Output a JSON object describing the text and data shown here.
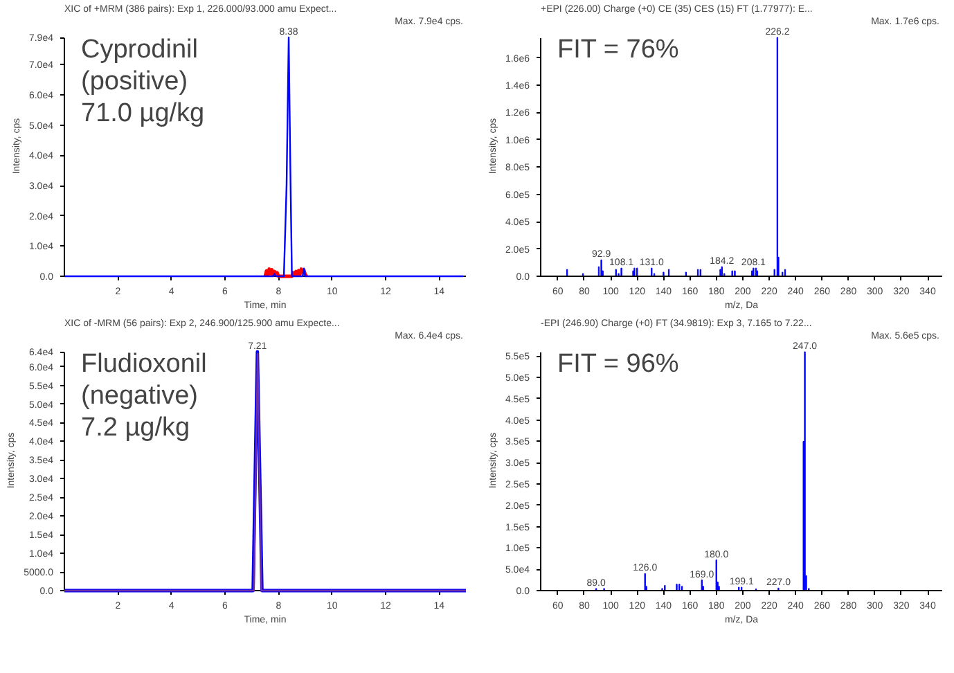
{
  "chart_data": [
    {
      "type": "line",
      "title": "XIC of +MRM (386 pairs): Exp 1, 226.000/93.000 amu Expect...",
      "subtitle": "Max. 7.9e4 cps.",
      "xlabel": "Time, min",
      "ylabel": "Intensity, cps",
      "series": [
        {
          "color": "#ff0000",
          "x": [
            7.5,
            7.55,
            7.6,
            7.65,
            7.7,
            7.75,
            7.8,
            7.85,
            7.9,
            7.95,
            8.0,
            8.5,
            8.55,
            8.6,
            8.65,
            8.7,
            8.75,
            8.8,
            8.85,
            8.9,
            8.95,
            9.0,
            9.05
          ],
          "values": [
            0,
            1800,
            500,
            2400,
            800,
            2200,
            300,
            1600,
            400,
            1200,
            0,
            0,
            1200,
            400,
            1600,
            700,
            1900,
            600,
            2400,
            1400,
            2000,
            600,
            0
          ]
        },
        {
          "color": "#0000ff",
          "x": [
            0,
            7.8,
            7.85,
            7.9,
            8.2,
            8.3,
            8.38,
            8.45,
            8.5,
            8.6,
            8.9,
            8.95,
            9.0,
            14.9
          ],
          "values": [
            0,
            0,
            800,
            0,
            0,
            30000,
            79000,
            30000,
            0,
            0,
            0,
            2600,
            0,
            0
          ]
        }
      ],
      "xlim": [
        0,
        15
      ],
      "ylim": [
        0,
        79000
      ],
      "xticks": [
        2,
        4,
        6,
        8,
        10,
        12,
        14
      ],
      "yticks": [
        {
          "value": 0,
          "label": "0.0"
        },
        {
          "value": 10000,
          "label": "1.0e4"
        },
        {
          "value": 20000,
          "label": "2.0e4"
        },
        {
          "value": 30000,
          "label": "3.0e4"
        },
        {
          "value": 40000,
          "label": "4.0e4"
        },
        {
          "value": 50000,
          "label": "5.0e4"
        },
        {
          "value": 60000,
          "label": "6.0e4"
        },
        {
          "value": 70000,
          "label": "7.0e4"
        },
        {
          "value": 79000,
          "label": "7.9e4"
        }
      ],
      "annotations": [
        "Cyprodinil\n(positive)\n71.0 µg/kg",
        {
          "text": "8.38",
          "x": 8.38,
          "y": 79000
        }
      ]
    },
    {
      "type": "bar",
      "title": "+EPI (226.00) Charge (+0) CE (35) CES (15) FT (1.77977): E...",
      "subtitle": "Max. 1.7e6 cps.",
      "xlabel": "m/z, Da",
      "ylabel": "Intensity, cps",
      "series": [
        {
          "color": "#0000ff",
          "x": [
            67,
            79,
            91,
            92.9,
            94,
            104,
            106,
            108.1,
            117,
            118,
            120,
            131,
            133,
            140,
            144,
            157,
            166,
            168,
            183,
            184.2,
            186,
            192,
            194,
            207,
            208.1,
            210,
            211,
            224,
            226.2,
            227,
            230,
            232
          ],
          "values": [
            50000,
            20000,
            70000,
            120000,
            40000,
            50000,
            20000,
            60000,
            40000,
            60000,
            60000,
            60000,
            20000,
            30000,
            50000,
            30000,
            50000,
            50000,
            50000,
            70000,
            20000,
            40000,
            40000,
            40000,
            60000,
            60000,
            40000,
            50000,
            1750000,
            140000,
            30000,
            50000
          ]
        }
      ],
      "xlim": [
        47,
        351
      ],
      "ylim": [
        0,
        1750000
      ],
      "xticks": [
        60,
        80,
        100,
        120,
        140,
        160,
        180,
        200,
        220,
        240,
        260,
        280,
        300,
        320,
        340
      ],
      "yticks": [
        {
          "value": 0,
          "label": "0.0"
        },
        {
          "value": 200000,
          "label": "2.0e5"
        },
        {
          "value": 400000,
          "label": "4.0e5"
        },
        {
          "value": 600000,
          "label": "6.0e5"
        },
        {
          "value": 800000,
          "label": "8.0e5"
        },
        {
          "value": 1000000,
          "label": "1.0e6"
        },
        {
          "value": 1200000,
          "label": "1.2e6"
        },
        {
          "value": 1400000,
          "label": "1.4e6"
        },
        {
          "value": 1600000,
          "label": "1.6e6"
        }
      ],
      "annotations": [
        "FIT = 76%",
        {
          "text": "92.9",
          "x": 92.9,
          "y": 120000
        },
        {
          "text": "108.1",
          "x": 108.1,
          "y": 60000
        },
        {
          "text": "131.0",
          "x": 131,
          "y": 60000
        },
        {
          "text": "184.2",
          "x": 184.2,
          "y": 70000
        },
        {
          "text": "208.1",
          "x": 208.1,
          "y": 60000
        },
        {
          "text": "226.2",
          "x": 226.2,
          "y": 1750000
        }
      ]
    },
    {
      "type": "line",
      "title": "XIC of -MRM (56 pairs): Exp 2, 246.900/125.900 amu Expecte...",
      "subtitle": "Max. 6.4e4 cps.",
      "xlabel": "Time, min",
      "ylabel": "Intensity, cps",
      "series": [
        {
          "color": "#0000ff",
          "x": [
            0,
            7.05,
            7.21,
            7.38,
            15
          ],
          "values": [
            0,
            0,
            64000,
            0,
            0
          ]
        },
        {
          "color": "#7030a0",
          "x": [
            0,
            7.08,
            7.22,
            7.36,
            15
          ],
          "values": [
            0,
            0,
            63500,
            0,
            0
          ]
        }
      ],
      "xlim": [
        0,
        15
      ],
      "ylim": [
        0,
        64000
      ],
      "xticks": [
        2,
        4,
        6,
        8,
        10,
        12,
        14
      ],
      "yticks": [
        {
          "value": 0,
          "label": "0.0"
        },
        {
          "value": 5000,
          "label": "5000.0"
        },
        {
          "value": 10000,
          "label": "1.0e4"
        },
        {
          "value": 15000,
          "label": "1.5e4"
        },
        {
          "value": 20000,
          "label": "2.0e4"
        },
        {
          "value": 25000,
          "label": "2.5e4"
        },
        {
          "value": 30000,
          "label": "3.0e4"
        },
        {
          "value": 35000,
          "label": "3.5e4"
        },
        {
          "value": 40000,
          "label": "4.0e4"
        },
        {
          "value": 45000,
          "label": "4.5e4"
        },
        {
          "value": 50000,
          "label": "5.0e4"
        },
        {
          "value": 55000,
          "label": "5.5e4"
        },
        {
          "value": 60000,
          "label": "6.0e4"
        },
        {
          "value": 64000,
          "label": "6.4e4"
        }
      ],
      "annotations": [
        "Fludioxonil\n(negative)\n7.2 µg/kg",
        {
          "text": "7.21",
          "x": 7.21,
          "y": 64000
        }
      ]
    },
    {
      "type": "bar",
      "title": "-EPI (246.90) Charge (+0) FT (34.9819): Exp 3, 7.165 to 7.22...",
      "subtitle": "Max. 5.6e5 cps.",
      "xlabel": "m/z, Da",
      "ylabel": "Intensity, cps",
      "series": [
        {
          "color": "#0000ff",
          "x": [
            89,
            95,
            126,
            127,
            139,
            141,
            150,
            152,
            154,
            169,
            170,
            180,
            181,
            182,
            197,
            199.1,
            210,
            227,
            246,
            247,
            248,
            250
          ],
          "values": [
            5000,
            5000,
            40000,
            10000,
            5000,
            12000,
            15000,
            15000,
            10000,
            25000,
            10000,
            72000,
            20000,
            10000,
            8000,
            8000,
            4000,
            6000,
            350000,
            560000,
            35000,
            5000
          ]
        }
      ],
      "xlim": [
        47,
        351
      ],
      "ylim": [
        0,
        560000
      ],
      "xticks": [
        60,
        80,
        100,
        120,
        140,
        160,
        180,
        200,
        220,
        240,
        260,
        280,
        300,
        320,
        340
      ],
      "yticks": [
        {
          "value": 0,
          "label": "0.0"
        },
        {
          "value": 50000,
          "label": "5.0e4"
        },
        {
          "value": 100000,
          "label": "1.0e5"
        },
        {
          "value": 150000,
          "label": "1.5e5"
        },
        {
          "value": 200000,
          "label": "2.0e5"
        },
        {
          "value": 250000,
          "label": "2.5e5"
        },
        {
          "value": 300000,
          "label": "3.0e5"
        },
        {
          "value": 350000,
          "label": "3.5e5"
        },
        {
          "value": 400000,
          "label": "4.0e5"
        },
        {
          "value": 450000,
          "label": "4.5e5"
        },
        {
          "value": 500000,
          "label": "5.0e5"
        },
        {
          "value": 550000,
          "label": "5.5e5"
        }
      ],
      "annotations": [
        "FIT = 96%",
        {
          "text": "89.0",
          "x": 89,
          "y": 5000
        },
        {
          "text": "126.0",
          "x": 126,
          "y": 40000
        },
        {
          "text": "169.0",
          "x": 169,
          "y": 25000
        },
        {
          "text": "180.0",
          "x": 180,
          "y": 72000
        },
        {
          "text": "199.1",
          "x": 199.1,
          "y": 8000
        },
        {
          "text": "227.0",
          "x": 227,
          "y": 6000
        },
        {
          "text": "247.0",
          "x": 247,
          "y": 560000
        }
      ]
    }
  ]
}
